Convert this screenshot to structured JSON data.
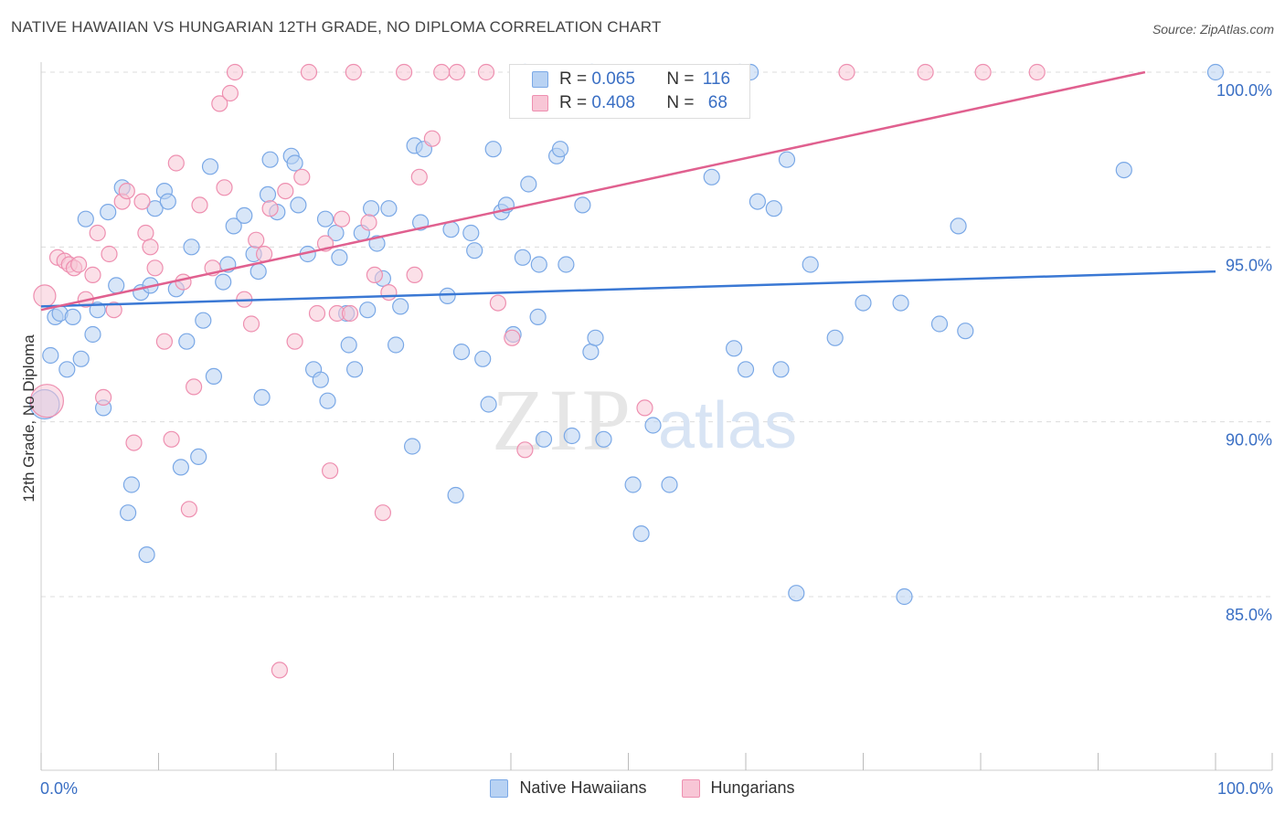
{
  "header": {
    "title": "NATIVE HAWAIIAN VS HUNGARIAN 12TH GRADE, NO DIPLOMA CORRELATION CHART",
    "source": "Source: ZipAtlas.com"
  },
  "watermark": {
    "zip": "ZIP",
    "atlas": "atlas"
  },
  "stats_legend": [
    {
      "r_label": "R =",
      "r_value": "0.065",
      "n_label": "N =",
      "n_value": "116",
      "color": "#7aa8e6",
      "fill": "#b8d2f3"
    },
    {
      "r_label": "R =",
      "r_value": "0.408",
      "n_label": "N =",
      "n_value": "68",
      "color": "#ee8fb0",
      "fill": "#f8c6d6"
    }
  ],
  "chart_data": {
    "type": "scatter",
    "title": "NATIVE HAWAIIAN VS HUNGARIAN 12TH GRADE, NO DIPLOMA CORRELATION CHART",
    "xlabel": "",
    "ylabel": "12th Grade, No Diploma",
    "xlim": [
      0,
      100
    ],
    "ylim": [
      80.3,
      100.5
    ],
    "x_tick_labels": [
      "0.0%",
      "100.0%"
    ],
    "y_ticks": [
      {
        "value": 100.0,
        "label": "100.0%"
      },
      {
        "value": 95.0,
        "label": "95.0%"
      },
      {
        "value": 90.0,
        "label": "90.0%"
      },
      {
        "value": 85.0,
        "label": "85.0%"
      }
    ],
    "grid": true,
    "legend_position": "bottom-center",
    "series": [
      {
        "name": "Native Hawaiians",
        "color": "#7aa8e6",
        "fill": "#b8d2f3",
        "trend_color": "#3a78d4",
        "trend": {
          "x": [
            0,
            100
          ],
          "y": [
            93.3,
            94.3
          ]
        },
        "points": [
          [
            0.3,
            90.5
          ],
          [
            0.8,
            91.9
          ],
          [
            1.2,
            93.0
          ],
          [
            1.6,
            93.1
          ],
          [
            2.2,
            91.5
          ],
          [
            2.7,
            93.0
          ],
          [
            3.4,
            91.8
          ],
          [
            3.8,
            95.8
          ],
          [
            4.4,
            92.5
          ],
          [
            4.8,
            93.2
          ],
          [
            5.3,
            90.4
          ],
          [
            5.7,
            96.0
          ],
          [
            6.4,
            93.9
          ],
          [
            6.9,
            96.7
          ],
          [
            7.7,
            88.2
          ],
          [
            7.4,
            87.4
          ],
          [
            8.5,
            93.7
          ],
          [
            9.0,
            86.2
          ],
          [
            9.3,
            93.9
          ],
          [
            9.7,
            96.1
          ],
          [
            10.5,
            96.6
          ],
          [
            10.8,
            96.3
          ],
          [
            11.5,
            93.8
          ],
          [
            11.9,
            88.7
          ],
          [
            12.4,
            92.3
          ],
          [
            12.8,
            95.0
          ],
          [
            13.4,
            89.0
          ],
          [
            13.8,
            92.9
          ],
          [
            14.4,
            97.3
          ],
          [
            14.7,
            91.3
          ],
          [
            15.5,
            94.0
          ],
          [
            15.9,
            94.5
          ],
          [
            16.4,
            95.6
          ],
          [
            17.3,
            95.9
          ],
          [
            18.1,
            94.8
          ],
          [
            18.5,
            94.3
          ],
          [
            18.8,
            90.7
          ],
          [
            19.3,
            96.5
          ],
          [
            19.5,
            97.5
          ],
          [
            20.1,
            96.0
          ],
          [
            21.3,
            97.6
          ],
          [
            21.6,
            97.4
          ],
          [
            21.9,
            96.2
          ],
          [
            22.7,
            94.8
          ],
          [
            23.2,
            91.5
          ],
          [
            23.8,
            91.2
          ],
          [
            24.2,
            95.8
          ],
          [
            24.4,
            90.6
          ],
          [
            25.1,
            95.4
          ],
          [
            25.4,
            94.7
          ],
          [
            26.0,
            93.1
          ],
          [
            26.2,
            92.2
          ],
          [
            26.7,
            91.5
          ],
          [
            27.3,
            95.4
          ],
          [
            27.8,
            93.2
          ],
          [
            28.1,
            96.1
          ],
          [
            28.6,
            95.1
          ],
          [
            29.1,
            94.1
          ],
          [
            29.6,
            96.1
          ],
          [
            30.2,
            92.2
          ],
          [
            30.6,
            93.3
          ],
          [
            31.6,
            89.3
          ],
          [
            31.8,
            97.9
          ],
          [
            32.3,
            95.7
          ],
          [
            32.6,
            97.8
          ],
          [
            34.6,
            93.6
          ],
          [
            34.9,
            95.5
          ],
          [
            35.3,
            87.9
          ],
          [
            35.8,
            92.0
          ],
          [
            36.6,
            95.4
          ],
          [
            36.9,
            94.9
          ],
          [
            37.6,
            91.8
          ],
          [
            38.1,
            90.5
          ],
          [
            38.5,
            97.8
          ],
          [
            39.2,
            96.0
          ],
          [
            39.6,
            96.2
          ],
          [
            40.2,
            92.5
          ],
          [
            41.0,
            94.7
          ],
          [
            41.5,
            96.8
          ],
          [
            42.3,
            93.0
          ],
          [
            42.4,
            94.5
          ],
          [
            42.8,
            89.5
          ],
          [
            43.9,
            97.6
          ],
          [
            44.2,
            97.8
          ],
          [
            44.7,
            94.5
          ],
          [
            45.2,
            89.6
          ],
          [
            46.1,
            96.2
          ],
          [
            46.8,
            92.0
          ],
          [
            47.2,
            92.4
          ],
          [
            47.9,
            89.5
          ],
          [
            50.4,
            88.2
          ],
          [
            51.1,
            86.8
          ],
          [
            52.1,
            89.9
          ],
          [
            53.5,
            88.2
          ],
          [
            57.1,
            97.0
          ],
          [
            59.0,
            92.1
          ],
          [
            60.0,
            91.5
          ],
          [
            61.0,
            96.3
          ],
          [
            62.4,
            96.1
          ],
          [
            63.0,
            91.5
          ],
          [
            63.5,
            97.5
          ],
          [
            64.3,
            85.1
          ],
          [
            65.5,
            94.5
          ],
          [
            67.6,
            92.4
          ],
          [
            70.0,
            93.4
          ],
          [
            73.2,
            93.4
          ],
          [
            73.5,
            85.0
          ],
          [
            76.5,
            92.8
          ],
          [
            78.7,
            92.6
          ],
          [
            78.1,
            95.6
          ],
          [
            92.2,
            97.2
          ],
          [
            100.0,
            100.0
          ],
          [
            41.2,
            100.0
          ],
          [
            59.5,
            100.0
          ],
          [
            60.4,
            100.0
          ],
          [
            46.9,
            100.0
          ]
        ]
      },
      {
        "name": "Hungarians",
        "color": "#ee8fb0",
        "fill": "#f8c6d6",
        "trend_color": "#e0608f",
        "trend": {
          "x": [
            0,
            94
          ],
          "y": [
            93.2,
            100.0
          ]
        },
        "points": [
          [
            0.3,
            93.6
          ],
          [
            0.5,
            90.6
          ],
          [
            1.4,
            94.7
          ],
          [
            2.0,
            94.6
          ],
          [
            2.4,
            94.5
          ],
          [
            2.8,
            94.4
          ],
          [
            3.2,
            94.5
          ],
          [
            3.8,
            93.5
          ],
          [
            4.4,
            94.2
          ],
          [
            4.8,
            95.4
          ],
          [
            5.3,
            90.7
          ],
          [
            5.8,
            94.8
          ],
          [
            6.2,
            93.2
          ],
          [
            6.9,
            96.3
          ],
          [
            7.3,
            96.6
          ],
          [
            7.9,
            89.4
          ],
          [
            8.6,
            96.3
          ],
          [
            8.9,
            95.4
          ],
          [
            9.3,
            95.0
          ],
          [
            9.7,
            94.4
          ],
          [
            10.5,
            92.3
          ],
          [
            11.1,
            89.5
          ],
          [
            11.5,
            97.4
          ],
          [
            12.1,
            94.0
          ],
          [
            12.6,
            87.5
          ],
          [
            13.0,
            91.0
          ],
          [
            13.5,
            96.2
          ],
          [
            14.6,
            94.4
          ],
          [
            15.2,
            99.1
          ],
          [
            15.6,
            96.7
          ],
          [
            16.1,
            99.4
          ],
          [
            16.5,
            100.0
          ],
          [
            17.3,
            93.5
          ],
          [
            17.9,
            92.8
          ],
          [
            18.3,
            95.2
          ],
          [
            19.0,
            94.8
          ],
          [
            19.5,
            96.1
          ],
          [
            20.3,
            82.9
          ],
          [
            20.8,
            96.6
          ],
          [
            21.6,
            92.3
          ],
          [
            22.2,
            97.0
          ],
          [
            22.8,
            100.0
          ],
          [
            23.5,
            93.1
          ],
          [
            24.2,
            95.1
          ],
          [
            24.6,
            88.6
          ],
          [
            25.2,
            93.1
          ],
          [
            25.6,
            95.8
          ],
          [
            26.3,
            93.1
          ],
          [
            26.6,
            100.0
          ],
          [
            27.9,
            95.7
          ],
          [
            28.4,
            94.2
          ],
          [
            29.1,
            87.4
          ],
          [
            29.6,
            93.7
          ],
          [
            30.9,
            100.0
          ],
          [
            31.8,
            94.2
          ],
          [
            32.2,
            97.0
          ],
          [
            33.3,
            98.1
          ],
          [
            34.1,
            100.0
          ],
          [
            35.4,
            100.0
          ],
          [
            37.9,
            100.0
          ],
          [
            38.9,
            93.4
          ],
          [
            40.1,
            92.4
          ],
          [
            41.2,
            89.2
          ],
          [
            51.4,
            90.4
          ],
          [
            68.6,
            100.0
          ],
          [
            75.3,
            100.0
          ],
          [
            80.2,
            100.0
          ],
          [
            84.8,
            100.0
          ]
        ]
      }
    ]
  }
}
